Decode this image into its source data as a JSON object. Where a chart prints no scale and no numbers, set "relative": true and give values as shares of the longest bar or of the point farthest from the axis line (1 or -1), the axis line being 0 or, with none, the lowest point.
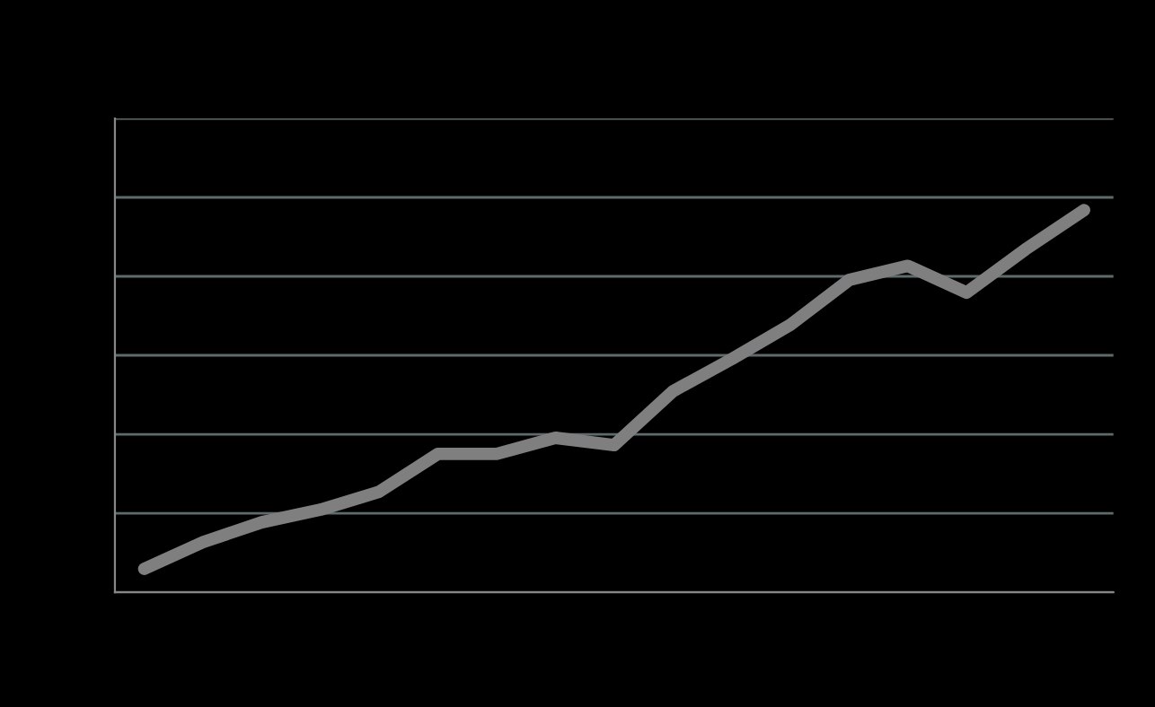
{
  "chart_data": {
    "type": "line",
    "relative": true,
    "grid": "y",
    "legend": false,
    "marker": "none",
    "line_style": "solid",
    "categories": [
      null,
      null,
      null,
      null,
      null,
      null,
      null,
      null,
      null,
      null,
      null,
      null,
      null,
      null,
      null,
      null,
      null
    ],
    "series": [
      {
        "color": "#7f7f7f",
        "values": [
          0.061,
          0.131,
          0.183,
          0.216,
          0.263,
          0.362,
          0.362,
          0.404,
          0.385,
          0.526,
          0.61,
          0.7,
          0.817,
          0.854,
          0.784,
          0.897,
          1
        ]
      }
    ]
  }
}
